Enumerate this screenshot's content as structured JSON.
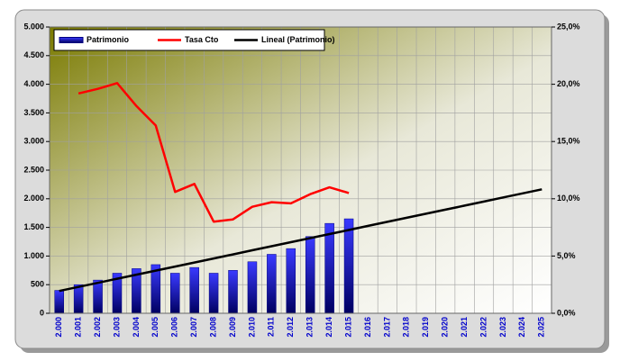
{
  "chart_data": {
    "type": "bar",
    "categories": [
      "2.000",
      "2.001",
      "2.002",
      "2.003",
      "2.004",
      "2.005",
      "2.006",
      "2.007",
      "2.008",
      "2.009",
      "2.010",
      "2.011",
      "2.012",
      "2.013",
      "2.014",
      "2.015",
      "2.016",
      "2.017",
      "2.018",
      "2.019",
      "2.020",
      "2.021",
      "2.022",
      "2.023",
      "2.024",
      "2.025"
    ],
    "series": [
      {
        "name": "Patrimonio",
        "type": "bar",
        "color": "#1a1ae6",
        "axis": "y",
        "values": [
          400,
          500,
          580,
          700,
          780,
          850,
          700,
          800,
          700,
          750,
          900,
          1030,
          1130,
          1340,
          1570,
          1650,
          null,
          null,
          null,
          null,
          null,
          null,
          null,
          null,
          null,
          null
        ]
      },
      {
        "name": "Tasa Cto",
        "type": "line",
        "color": "#ff0000",
        "axis": "y2",
        "values": [
          null,
          19.2,
          19.6,
          20.1,
          18.1,
          16.4,
          10.6,
          11.3,
          8.0,
          8.2,
          9.3,
          9.7,
          9.6,
          10.4,
          11.0,
          10.5,
          null,
          null,
          null,
          null,
          null,
          null,
          null,
          null,
          null,
          null
        ]
      },
      {
        "name": "Lineal (Patrimonio)",
        "type": "line",
        "color": "#000000",
        "axis": "y",
        "values": [
          390,
          461,
          532,
          603,
          674,
          745,
          816,
          887,
          958,
          1029,
          1100,
          1171,
          1242,
          1313,
          1384,
          1455,
          1526,
          1597,
          1668,
          1739,
          1810,
          1881,
          1952,
          2023,
          2094,
          2165
        ]
      }
    ],
    "ylim": [
      0,
      5000
    ],
    "yticks": [
      0,
      500,
      {
        "value": 1000,
        "label": "1.000"
      },
      {
        "value": 1500,
        "label": "1.500"
      },
      {
        "value": 2000,
        "label": "2.000"
      },
      {
        "value": 2500,
        "label": "2.500"
      },
      {
        "value": 3000,
        "label": "3.000"
      },
      {
        "value": 3500,
        "label": "3.500"
      },
      {
        "value": 4000,
        "label": "4.000"
      },
      {
        "value": 4500,
        "label": "4.500"
      },
      {
        "value": 5000,
        "label": "5.000"
      }
    ],
    "y2lim": [
      0,
      25
    ],
    "y2ticks": [
      {
        "value": 0,
        "label": "0,0%"
      },
      {
        "value": 5,
        "label": "5,0%"
      },
      {
        "value": 10,
        "label": "10,0%"
      },
      {
        "value": 15,
        "label": "15,0%"
      },
      {
        "value": 20,
        "label": "20,0%"
      },
      {
        "value": 25,
        "label": "25,0%"
      }
    ],
    "grid": true,
    "legend": "top-left"
  }
}
